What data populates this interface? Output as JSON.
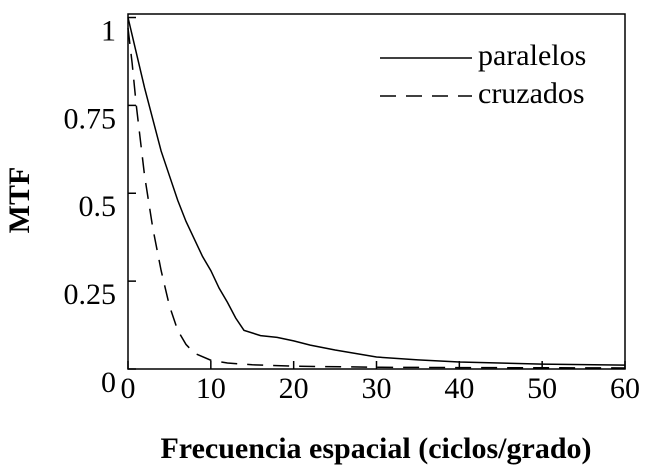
{
  "chart_data": {
    "type": "line",
    "xlabel": "Frecuencia espacial (ciclos/grado)",
    "ylabel": "MTF",
    "xlim": [
      0,
      60
    ],
    "xticks": [
      0,
      10,
      20,
      30,
      40,
      50,
      60
    ],
    "ylim": [
      0,
      1.01
    ],
    "yticks": [
      0,
      0.25,
      0.5,
      0.75,
      1
    ],
    "legend": "upper right",
    "series": [
      {
        "name": "paralelos",
        "color": "#000000",
        "style": "solid",
        "x": [
          0,
          1,
          2,
          3,
          4,
          5,
          6,
          7,
          8,
          9,
          10,
          11,
          12,
          13,
          14,
          16,
          18,
          20,
          22,
          25,
          30,
          35,
          40,
          50,
          60
        ],
        "values": [
          1.0,
          0.9,
          0.8,
          0.71,
          0.62,
          0.55,
          0.48,
          0.42,
          0.37,
          0.32,
          0.28,
          0.23,
          0.19,
          0.145,
          0.11,
          0.095,
          0.09,
          0.08,
          0.068,
          0.054,
          0.034,
          0.026,
          0.02,
          0.014,
          0.011
        ]
      },
      {
        "name": "cruzados",
        "color": "#000000",
        "style": "dashed",
        "x": [
          0,
          0.5,
          1,
          2,
          3,
          4,
          5,
          6,
          7,
          8,
          10,
          12,
          15,
          20,
          30,
          40,
          60
        ],
        "values": [
          0.97,
          0.87,
          0.75,
          0.55,
          0.4,
          0.28,
          0.18,
          0.11,
          0.07,
          0.045,
          0.025,
          0.017,
          0.012,
          0.008,
          0.005,
          0.004,
          0.003
        ]
      }
    ]
  }
}
